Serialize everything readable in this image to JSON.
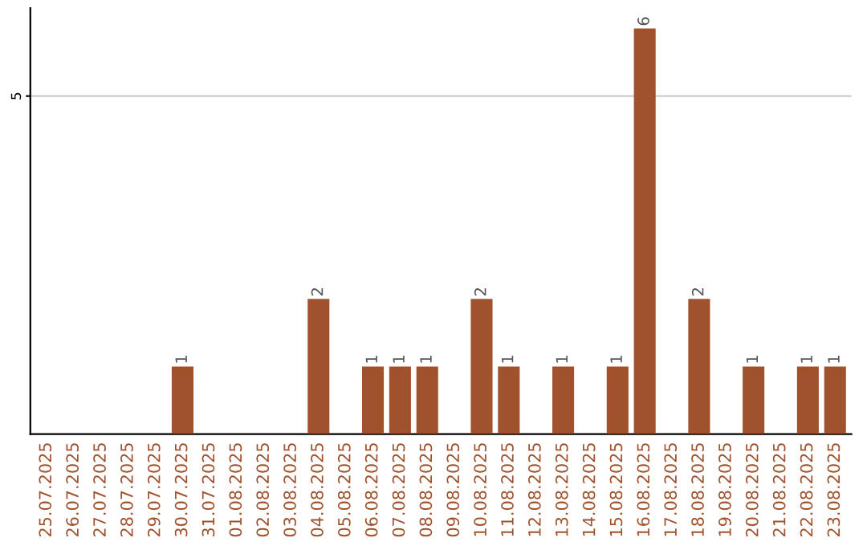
{
  "chart_data": {
    "type": "bar",
    "categories": [
      "25.07.2025",
      "26.07.2025",
      "27.07.2025",
      "28.07.2025",
      "29.07.2025",
      "30.07.2025",
      "31.07.2025",
      "01.08.2025",
      "02.08.2025",
      "03.08.2025",
      "04.08.2025",
      "05.08.2025",
      "06.08.2025",
      "07.08.2025",
      "08.08.2025",
      "09.08.2025",
      "10.08.2025",
      "11.08.2025",
      "12.08.2025",
      "13.08.2025",
      "14.08.2025",
      "15.08.2025",
      "16.08.2025",
      "17.08.2025",
      "18.08.2025",
      "19.08.2025",
      "20.08.2025",
      "21.08.2025",
      "22.08.2025",
      "23.08.2025"
    ],
    "values": [
      0,
      0,
      0,
      0,
      0,
      1,
      0,
      0,
      0,
      0,
      2,
      0,
      1,
      1,
      1,
      0,
      2,
      1,
      0,
      1,
      0,
      1,
      6,
      0,
      2,
      0,
      1,
      0,
      1,
      1
    ],
    "value_labels": [
      null,
      null,
      null,
      null,
      null,
      "1",
      null,
      null,
      null,
      null,
      "2",
      null,
      "1",
      "1",
      "1",
      null,
      "2",
      "1",
      null,
      "1",
      null,
      "1",
      "6",
      null,
      "2",
      null,
      "1",
      null,
      "1",
      "1"
    ],
    "color": "#a0522d",
    "ylim": [
      0,
      6.3
    ],
    "yticks": [
      5
    ],
    "grid": "y"
  }
}
